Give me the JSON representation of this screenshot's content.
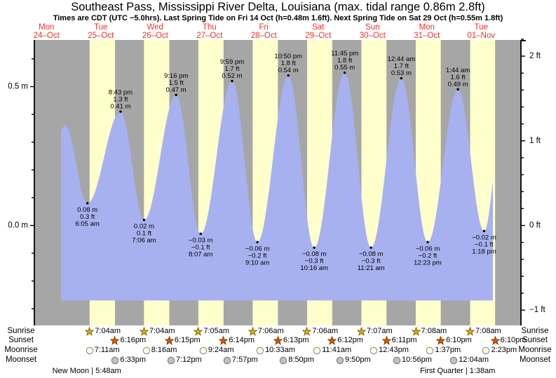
{
  "title": "Southeast Pass, Mississippi River Delta, Louisiana (max. tidal range 0.86m 2.8ft)",
  "subtitle": "Times are CDT (UTC −5.0hrs). Last Spring Tide on Fri 14 Oct (h=0.48m 1.6ft). Next Spring Tide on Sat 29 Oct (h=0.55m 1.8ft)",
  "days": [
    {
      "name": "Mon",
      "date": "24–Oct"
    },
    {
      "name": "Tue",
      "date": "25–Oct"
    },
    {
      "name": "Wed",
      "date": "26–Oct"
    },
    {
      "name": "Thu",
      "date": "27–Oct"
    },
    {
      "name": "Fri",
      "date": "28–Oct"
    },
    {
      "name": "Sat",
      "date": "29–Oct"
    },
    {
      "name": "Sun",
      "date": "30–Oct"
    },
    {
      "name": "Mon",
      "date": "31–Oct"
    },
    {
      "name": "Tue",
      "date": "01–Nov"
    }
  ],
  "chart_data": {
    "type": "area",
    "series_name": "Tide height",
    "x_axis": {
      "unit": "days",
      "n_days": 9,
      "start": "Mon 24-Oct"
    },
    "y_axis_left": {
      "unit": "m",
      "major_ticks": [
        {
          "label": "0.5 m",
          "value": 0.5
        },
        {
          "label": "0.0 m",
          "value": 0.0
        }
      ],
      "minor_step": 0.1,
      "minor_range": [
        -0.3,
        0.6
      ]
    },
    "y_axis_right": {
      "unit": "ft",
      "major_ticks": [
        {
          "label": "2 ft",
          "value": 2
        },
        {
          "label": "1 ft",
          "value": 1
        },
        {
          "label": "0 ft",
          "value": 0
        },
        {
          "label": "−1 ft",
          "value": -1
        }
      ],
      "minor_step": 0.2,
      "minor_range": [
        -1.0,
        2.2
      ]
    },
    "tide_extremes": [
      {
        "kind": "high",
        "day": 0,
        "hours": 20.3,
        "height_m": 0.36,
        "annotated": false
      },
      {
        "kind": "low",
        "day": 1,
        "hours": 6.083,
        "height_m": 0.08,
        "label_m": "0.08 m",
        "label_ft": "0.3 ft",
        "time": "6:05 am",
        "annotated": true
      },
      {
        "kind": "high",
        "day": 1,
        "hours": 20.717,
        "height_m": 0.41,
        "label_m": "0.41 m",
        "label_ft": "1.3 ft",
        "time": "8:43 pm",
        "annotated": true
      },
      {
        "kind": "low",
        "day": 2,
        "hours": 7.1,
        "height_m": 0.02,
        "label_m": "0.02 m",
        "label_ft": "0.1 ft",
        "time": "7:06 am",
        "annotated": true
      },
      {
        "kind": "high",
        "day": 2,
        "hours": 21.267,
        "height_m": 0.47,
        "label_m": "0.47 m",
        "label_ft": "1.5 ft",
        "time": "9:16 pm",
        "annotated": true
      },
      {
        "kind": "low",
        "day": 3,
        "hours": 8.117,
        "height_m": -0.03,
        "label_m": "−0.03 m",
        "label_ft": "−0.1 ft",
        "time": "8:07 am",
        "annotated": true
      },
      {
        "kind": "high",
        "day": 3,
        "hours": 21.983,
        "height_m": 0.52,
        "label_m": "0.52 m",
        "label_ft": "1.7 ft",
        "time": "9:59 pm",
        "annotated": true
      },
      {
        "kind": "low",
        "day": 4,
        "hours": 9.167,
        "height_m": -0.06,
        "label_m": "−0.06 m",
        "label_ft": "−0.2 ft",
        "time": "9:10 am",
        "annotated": true
      },
      {
        "kind": "high",
        "day": 4,
        "hours": 22.833,
        "height_m": 0.54,
        "label_m": "0.54 m",
        "label_ft": "1.8 ft",
        "time": "10:50 pm",
        "annotated": true
      },
      {
        "kind": "low",
        "day": 5,
        "hours": 10.267,
        "height_m": -0.08,
        "label_m": "−0.08 m",
        "label_ft": "−0.3 ft",
        "time": "10:16 am",
        "annotated": true
      },
      {
        "kind": "high",
        "day": 5,
        "hours": 23.75,
        "height_m": 0.55,
        "label_m": "0.55 m",
        "label_ft": "1.8 ft",
        "time": "11:45 pm",
        "annotated": true
      },
      {
        "kind": "low",
        "day": 6,
        "hours": 11.35,
        "height_m": -0.08,
        "label_m": "−0.08 m",
        "label_ft": "−0.3 ft",
        "time": "11:21 am",
        "annotated": true
      },
      {
        "kind": "high",
        "day": 7,
        "hours": 0.733,
        "height_m": 0.53,
        "label_m": "0.53 m",
        "label_ft": "1.7 ft",
        "time": "12:44 am",
        "annotated": true
      },
      {
        "kind": "low",
        "day": 7,
        "hours": 12.383,
        "height_m": -0.06,
        "label_m": "−0.06 m",
        "label_ft": "−0.2 ft",
        "time": "12:23 pm",
        "annotated": true
      },
      {
        "kind": "high",
        "day": 8,
        "hours": 1.733,
        "height_m": 0.49,
        "label_m": "0.49 m",
        "label_ft": "1.6 ft",
        "time": "1:44 am",
        "annotated": true
      },
      {
        "kind": "low",
        "day": 8,
        "hours": 13.3,
        "height_m": -0.02,
        "label_m": "−0.02 m",
        "label_ft": "−0.1 ft",
        "time": "1:18 pm",
        "annotated": true
      }
    ],
    "curve_hints": {
      "pre_low": {
        "day": 0,
        "hours": 10.0,
        "height_m": 0.1
      },
      "post_high": {
        "day": 8,
        "hours": 22.0,
        "height_m": 0.42
      },
      "clip_start": {
        "day": 0,
        "hours": 18.4
      },
      "clip_end": {
        "day": 8,
        "hours": 17.2
      }
    }
  },
  "astro": {
    "row_labels": {
      "sunrise": "Sunrise",
      "sunset": "Sunset",
      "moonrise": "Moonrise",
      "moonset": "Moonset"
    },
    "sunrise": [
      {
        "day": 1,
        "time": "7:04am"
      },
      {
        "day": 2,
        "time": "7:04am"
      },
      {
        "day": 3,
        "time": "7:05am"
      },
      {
        "day": 4,
        "time": "7:06am"
      },
      {
        "day": 5,
        "time": "7:06am"
      },
      {
        "day": 6,
        "time": "7:07am"
      },
      {
        "day": 7,
        "time": "7:08am"
      },
      {
        "day": 8,
        "time": "7:08am"
      }
    ],
    "sunset": [
      {
        "day": 1,
        "time": "6:16pm"
      },
      {
        "day": 2,
        "time": "6:15pm"
      },
      {
        "day": 3,
        "time": "6:14pm"
      },
      {
        "day": 4,
        "time": "6:13pm"
      },
      {
        "day": 5,
        "time": "6:12pm"
      },
      {
        "day": 6,
        "time": "6:11pm"
      },
      {
        "day": 7,
        "time": "6:10pm"
      },
      {
        "day": 8,
        "time": "6:10pm"
      }
    ],
    "moonrise": [
      {
        "day": 1,
        "time": "7:11am"
      },
      {
        "day": 2,
        "time": "8:16am"
      },
      {
        "day": 3,
        "time": "9:24am"
      },
      {
        "day": 4,
        "time": "10:33am"
      },
      {
        "day": 5,
        "time": "11:41am"
      },
      {
        "day": 6,
        "time": "12:43pm"
      },
      {
        "day": 7,
        "time": "1:37pm"
      },
      {
        "day": 8,
        "time": "2:23pm"
      }
    ],
    "moonset": [
      {
        "day": 1,
        "time": "6:33pm"
      },
      {
        "day": 2,
        "time": "7:12pm"
      },
      {
        "day": 3,
        "time": "7:57pm"
      },
      {
        "day": 4,
        "time": "8:50pm"
      },
      {
        "day": 5,
        "time": "9:50pm"
      },
      {
        "day": 6,
        "time": "10:56pm"
      },
      {
        "day": 8,
        "time": "12:04am"
      }
    ],
    "phases": [
      {
        "label": "New Moon | 5:48am",
        "day": 1,
        "hours": 5.8
      },
      {
        "label": "First Quarter | 1:38am",
        "day": 8,
        "hours": 1.633
      }
    ]
  },
  "colors": {
    "night_band": "#a6a6a6",
    "daylight_band": "#ffffcc",
    "tide_area": "#a7b1f0",
    "day_label_red": "#f3332a",
    "annotation_text": "#000000",
    "axis": "#000000",
    "sunrise_star": "#d8a62a",
    "sunrise_star_border": "#8a6d00",
    "sunset_star": "#cf5a0a",
    "sunset_star_border": "#8a3c00",
    "moonrise_circle": "#ffffe2",
    "moonrise_circle_border": "#8f8f8f",
    "moonset_circle": "#c2c2ba",
    "moonset_circle_border": "#7d7d7d"
  }
}
